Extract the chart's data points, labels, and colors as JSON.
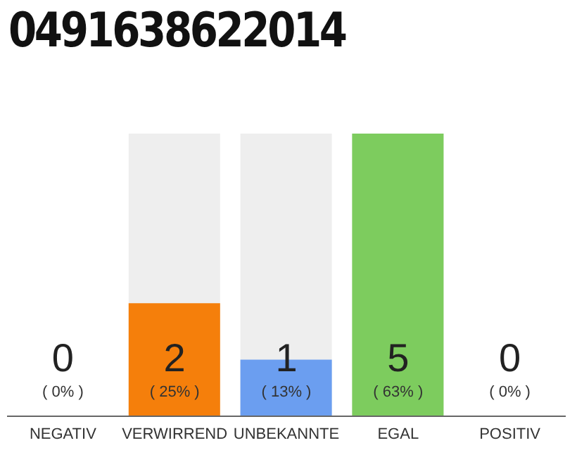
{
  "chart_data": {
    "type": "bar",
    "title": "0491638622014",
    "categories": [
      "NEGATIV",
      "VERWIRREND",
      "UNBEKANNTE",
      "EGAL",
      "POSITIV"
    ],
    "values": [
      0,
      2,
      1,
      5,
      0
    ],
    "colors": [
      "#cccccc",
      "#f57f0b",
      "#6b9ef0",
      "#7dcc5e",
      "#cccccc"
    ],
    "data_labels": true,
    "annotations": [
      "( 0% )",
      "( 25% )",
      "( 13% )",
      "( 63% )",
      "( 0% )"
    ],
    "ylim": [
      0,
      5
    ],
    "tick_labels": "x",
    "grid": false,
    "legend": false
  }
}
